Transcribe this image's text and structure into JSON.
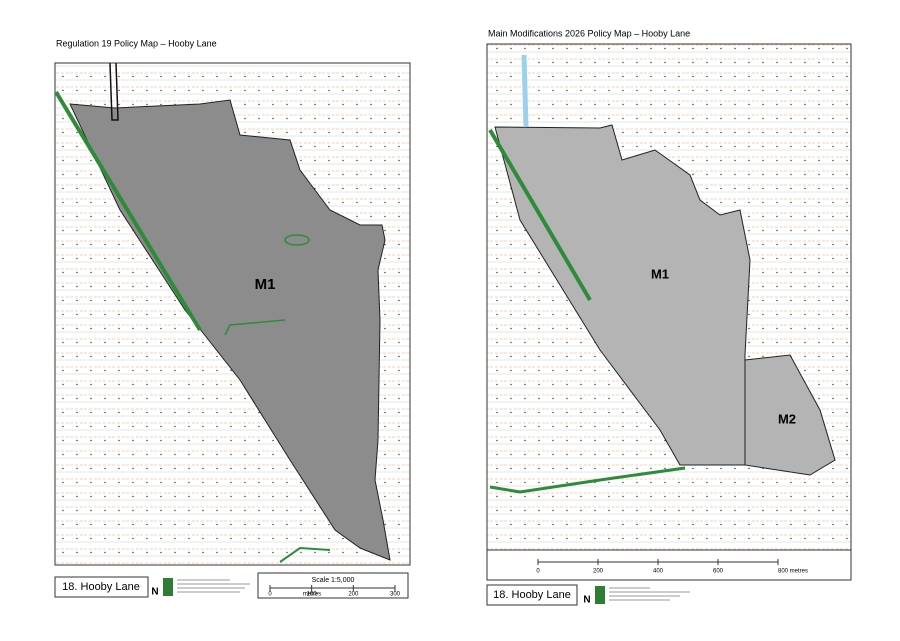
{
  "left": {
    "title": "Regulation 19 Policy Map – Hooby Lane",
    "site_label": "M1",
    "caption": "18. Hooby Lane",
    "north": "N",
    "scale": {
      "title": "Scale 1:5,000",
      "ticks": [
        "0",
        "100",
        "200",
        "300"
      ],
      "unit": "metres"
    }
  },
  "right": {
    "title": "Main Modifications 2026 Policy Map – Hooby Lane",
    "site_labels": [
      "M1",
      "M2"
    ],
    "caption": "18. Hooby Lane",
    "north": "N",
    "scale": {
      "ticks": [
        "0",
        "200",
        "400",
        "600",
        "800 metres"
      ]
    }
  }
}
